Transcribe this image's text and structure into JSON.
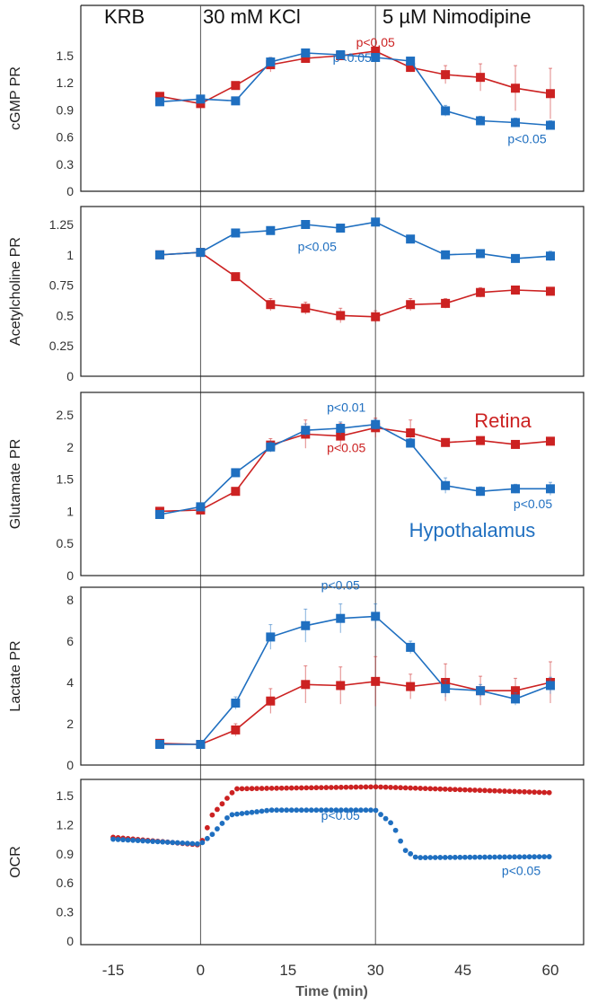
{
  "phases": [
    "KRB",
    "30 mM KCl",
    "5 µM Nimodipine"
  ],
  "xlabel": "Time (min)",
  "xticks": [
    -15,
    0,
    15,
    30,
    45,
    60
  ],
  "colors": {
    "retina": "#cc2222",
    "hypothalamus": "#1f6fc0",
    "divider": "#555555"
  },
  "legend": {
    "retina": "Retina",
    "hypothalamus": "Hypothalamus"
  },
  "chart_data": [
    {
      "type": "line",
      "ylabel": "cGMP PR",
      "ylim": [
        0,
        1.5
      ],
      "yticks": [
        0,
        0.3,
        0.6,
        0.9,
        1.2,
        1.5
      ],
      "x": [
        -7,
        0,
        6,
        12,
        18,
        24,
        30,
        36,
        42,
        48,
        54,
        60
      ],
      "series": [
        {
          "name": "Retina",
          "values": [
            1.05,
            0.97,
            1.17,
            1.4,
            1.47,
            1.5,
            1.55,
            1.37,
            1.29,
            1.26,
            1.14,
            1.08
          ],
          "err": [
            0.03,
            0.03,
            0.03,
            0.08,
            0.05,
            0.04,
            0.04,
            0.05,
            0.1,
            0.15,
            0.25,
            0.28
          ]
        },
        {
          "name": "Hypothalamus",
          "values": [
            0.99,
            1.02,
            1.0,
            1.43,
            1.53,
            1.51,
            1.48,
            1.44,
            0.89,
            0.78,
            0.76,
            0.73
          ],
          "err": [
            0.03,
            0.03,
            0.02,
            0.05,
            0.04,
            0.03,
            0.03,
            0.03,
            0.06,
            0.05,
            0.05,
            0.05
          ]
        }
      ],
      "annotations": [
        {
          "text": "p<0.05",
          "x": 30,
          "y": 1.6,
          "color": "retina"
        },
        {
          "text": "p<0.05",
          "x": 26,
          "y": 1.43,
          "color": "hypothalamus"
        },
        {
          "text": "p<0.05",
          "x": 56,
          "y": 0.53,
          "color": "hypothalamus"
        }
      ]
    },
    {
      "type": "line",
      "ylabel": "Acetylcholine PR",
      "ylim": [
        0,
        1.25
      ],
      "yticks": [
        0,
        0.25,
        0.5,
        0.75,
        1,
        1.25
      ],
      "x": [
        -7,
        0,
        6,
        12,
        18,
        24,
        30,
        36,
        42,
        48,
        54,
        60
      ],
      "series": [
        {
          "name": "Retina",
          "values": [
            1.0,
            1.02,
            0.82,
            0.59,
            0.56,
            0.5,
            0.49,
            0.59,
            0.6,
            0.69,
            0.71,
            0.7
          ],
          "err": [
            0.02,
            0.02,
            0.03,
            0.05,
            0.05,
            0.06,
            0.05,
            0.05,
            0.04,
            0.04,
            0.03,
            0.03
          ]
        },
        {
          "name": "Hypothalamus",
          "values": [
            1.0,
            1.02,
            1.18,
            1.2,
            1.25,
            1.22,
            1.27,
            1.13,
            1.0,
            1.01,
            0.97,
            0.99
          ],
          "err": [
            0.02,
            0.02,
            0.03,
            0.03,
            0.02,
            0.03,
            0.03,
            0.03,
            0.03,
            0.03,
            0.03,
            0.04
          ]
        }
      ],
      "annotations": [
        {
          "text": "p<0.05",
          "x": 20,
          "y": 1.03,
          "color": "hypothalamus"
        }
      ]
    },
    {
      "type": "line",
      "ylabel": "Glutamate PR",
      "ylim": [
        0,
        2.5
      ],
      "yticks": [
        0,
        0.5,
        1,
        1.5,
        2,
        2.5
      ],
      "x": [
        -7,
        0,
        6,
        12,
        18,
        24,
        30,
        36,
        42,
        48,
        54,
        60
      ],
      "series": [
        {
          "name": "Retina",
          "values": [
            1.0,
            1.02,
            1.31,
            2.03,
            2.2,
            2.17,
            2.3,
            2.22,
            2.07,
            2.1,
            2.04,
            2.09
          ],
          "err": [
            0.03,
            0.04,
            0.05,
            0.1,
            0.22,
            0.2,
            0.15,
            0.2,
            0.06,
            0.05,
            0.05,
            0.05
          ]
        },
        {
          "name": "Hypothalamus",
          "values": [
            0.95,
            1.07,
            1.6,
            2.0,
            2.26,
            2.29,
            2.35,
            2.06,
            1.4,
            1.31,
            1.35,
            1.35
          ],
          "err": [
            0.04,
            0.05,
            0.05,
            0.08,
            0.1,
            0.1,
            0.08,
            0.07,
            0.12,
            0.07,
            0.07,
            0.1
          ]
        }
      ],
      "annotations": [
        {
          "text": "p<0.01",
          "x": 25,
          "y": 2.55,
          "color": "hypothalamus"
        },
        {
          "text": "p<0.05",
          "x": 25,
          "y": 1.92,
          "color": "retina"
        },
        {
          "text": "p<0.05",
          "x": 57,
          "y": 1.05,
          "color": "hypothalamus"
        }
      ]
    },
    {
      "type": "line",
      "ylabel": "Lactate PR",
      "ylim": [
        0,
        8
      ],
      "yticks": [
        0,
        2,
        4,
        6,
        8
      ],
      "x": [
        -7,
        0,
        6,
        12,
        18,
        24,
        30,
        36,
        42,
        48,
        54,
        60
      ],
      "series": [
        {
          "name": "Retina",
          "values": [
            1.05,
            1.0,
            1.7,
            3.1,
            3.9,
            3.85,
            4.05,
            3.8,
            4.0,
            3.6,
            3.6,
            4.0
          ],
          "err": [
            0.1,
            0.1,
            0.3,
            0.6,
            0.9,
            0.9,
            1.2,
            0.6,
            0.9,
            0.7,
            0.6,
            1.0
          ]
        },
        {
          "name": "Hypothalamus",
          "values": [
            1.0,
            1.0,
            3.0,
            6.2,
            6.75,
            7.1,
            7.2,
            5.7,
            3.7,
            3.6,
            3.2,
            3.85
          ],
          "err": [
            0.1,
            0.1,
            0.3,
            0.6,
            0.8,
            0.7,
            0.6,
            0.3,
            0.4,
            0.3,
            0.3,
            0.4
          ]
        }
      ],
      "annotations": [
        {
          "text": "p<0.05",
          "x": 24,
          "y": 8.5,
          "color": "hypothalamus"
        }
      ]
    },
    {
      "type": "scatter",
      "ylabel": "OCR",
      "ylim": [
        0,
        1.5
      ],
      "yticks": [
        0,
        0.3,
        0.6,
        0.9,
        1.2,
        1.5
      ],
      "x_range": [
        -15,
        60
      ],
      "series": [
        {
          "name": "Retina",
          "curve": [
            [
              -15,
              1.07
            ],
            [
              0,
              0.99
            ],
            [
              2,
              1.3
            ],
            [
              6,
              1.57
            ],
            [
              30,
              1.59
            ],
            [
              60,
              1.53
            ]
          ]
        },
        {
          "name": "Hypothalamus",
          "curve": [
            [
              -15,
              1.05
            ],
            [
              0,
              1.0
            ],
            [
              2,
              1.1
            ],
            [
              5,
              1.3
            ],
            [
              12,
              1.35
            ],
            [
              30,
              1.35
            ],
            [
              33,
              1.2
            ],
            [
              35,
              0.94
            ],
            [
              37,
              0.86
            ],
            [
              60,
              0.87
            ]
          ]
        }
      ],
      "annotations": [
        {
          "text": "p<0.05",
          "x": 24,
          "y": 1.25,
          "color": "hypothalamus"
        },
        {
          "text": "p<0.05",
          "x": 55,
          "y": 0.68,
          "color": "hypothalamus"
        }
      ]
    }
  ]
}
